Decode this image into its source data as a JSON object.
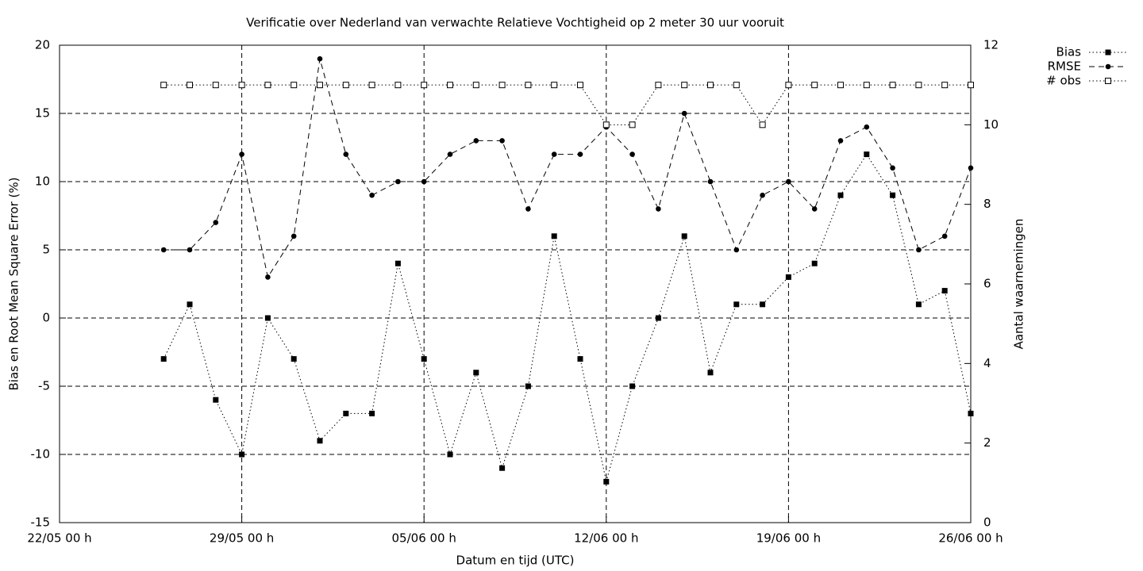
{
  "chart_data": {
    "type": "line",
    "title": "Verificatie over Nederland van verwachte Relatieve Vochtigheid op 2 meter 30 uur vooruit",
    "xlabel": "Datum en tijd (UTC)",
    "ylabel": "Bias en Root Mean Square Error (%)",
    "y2label": "Aantal waarnemingen",
    "x": [
      "26/05 00 h",
      "27/05 00 h",
      "28/05 00 h",
      "29/05 00 h",
      "30/05 00 h",
      "31/05 00 h",
      "01/06 00 h",
      "02/06 00 h",
      "03/06 00 h",
      "04/06 00 h",
      "05/06 00 h",
      "06/06 00 h",
      "07/06 00 h",
      "08/06 00 h",
      "09/06 00 h",
      "10/06 00 h",
      "11/06 00 h",
      "12/06 00 h",
      "13/06 00 h",
      "14/06 00 h",
      "15/06 00 h",
      "16/06 00 h",
      "17/06 00 h",
      "18/06 00 h",
      "19/06 00 h",
      "20/06 00 h",
      "21/06 00 h",
      "22/06 00 h",
      "23/06 00 h",
      "24/06 00 h",
      "25/06 00 h",
      "26/06 00 h"
    ],
    "xlim": [
      "22/05 00 h",
      "26/06 00 h"
    ],
    "xticks": [
      "22/05 00 h",
      "29/05 00 h",
      "05/06 00 h",
      "12/06 00 h",
      "19/06 00 h",
      "26/06 00 h"
    ],
    "ylim": [
      -15,
      20
    ],
    "yticks": [
      -15,
      -10,
      -5,
      0,
      5,
      10,
      15,
      20
    ],
    "y2lim": [
      0,
      12
    ],
    "y2ticks": [
      0,
      2,
      4,
      6,
      8,
      10,
      12
    ],
    "grid": true,
    "legend": "top-right",
    "series": [
      {
        "name": "Bias",
        "color": "#000000",
        "marker": "square",
        "line": "dotted",
        "values": [
          -3,
          1,
          -6,
          -10,
          0,
          -3,
          -9,
          -7,
          -7,
          4,
          -3,
          -10,
          -4,
          -11,
          -5,
          6,
          -3,
          -12,
          -5,
          0,
          6,
          -4,
          1,
          1,
          3,
          4,
          9,
          12,
          9,
          1,
          2,
          -7
        ]
      },
      {
        "name": "RMSE",
        "color": "#000000",
        "marker": "circle",
        "line": "dashed",
        "values": [
          5,
          5,
          7,
          12,
          3,
          6,
          19,
          12,
          9,
          10,
          10,
          12,
          13,
          13,
          8,
          12,
          12,
          14,
          12,
          8,
          15,
          10,
          5,
          9,
          10,
          8,
          13,
          14,
          11,
          5,
          6,
          11
        ]
      },
      {
        "name": "# obs",
        "color": "#000000",
        "marker": "open-square",
        "line": "dotted",
        "axis": "y2",
        "values": [
          11,
          11,
          11,
          11,
          11,
          11,
          11,
          11,
          11,
          11,
          11,
          11,
          11,
          11,
          11,
          11,
          11,
          10,
          10,
          11,
          11,
          11,
          11,
          10,
          11,
          11,
          11,
          11,
          11,
          11,
          11,
          11
        ]
      }
    ]
  }
}
